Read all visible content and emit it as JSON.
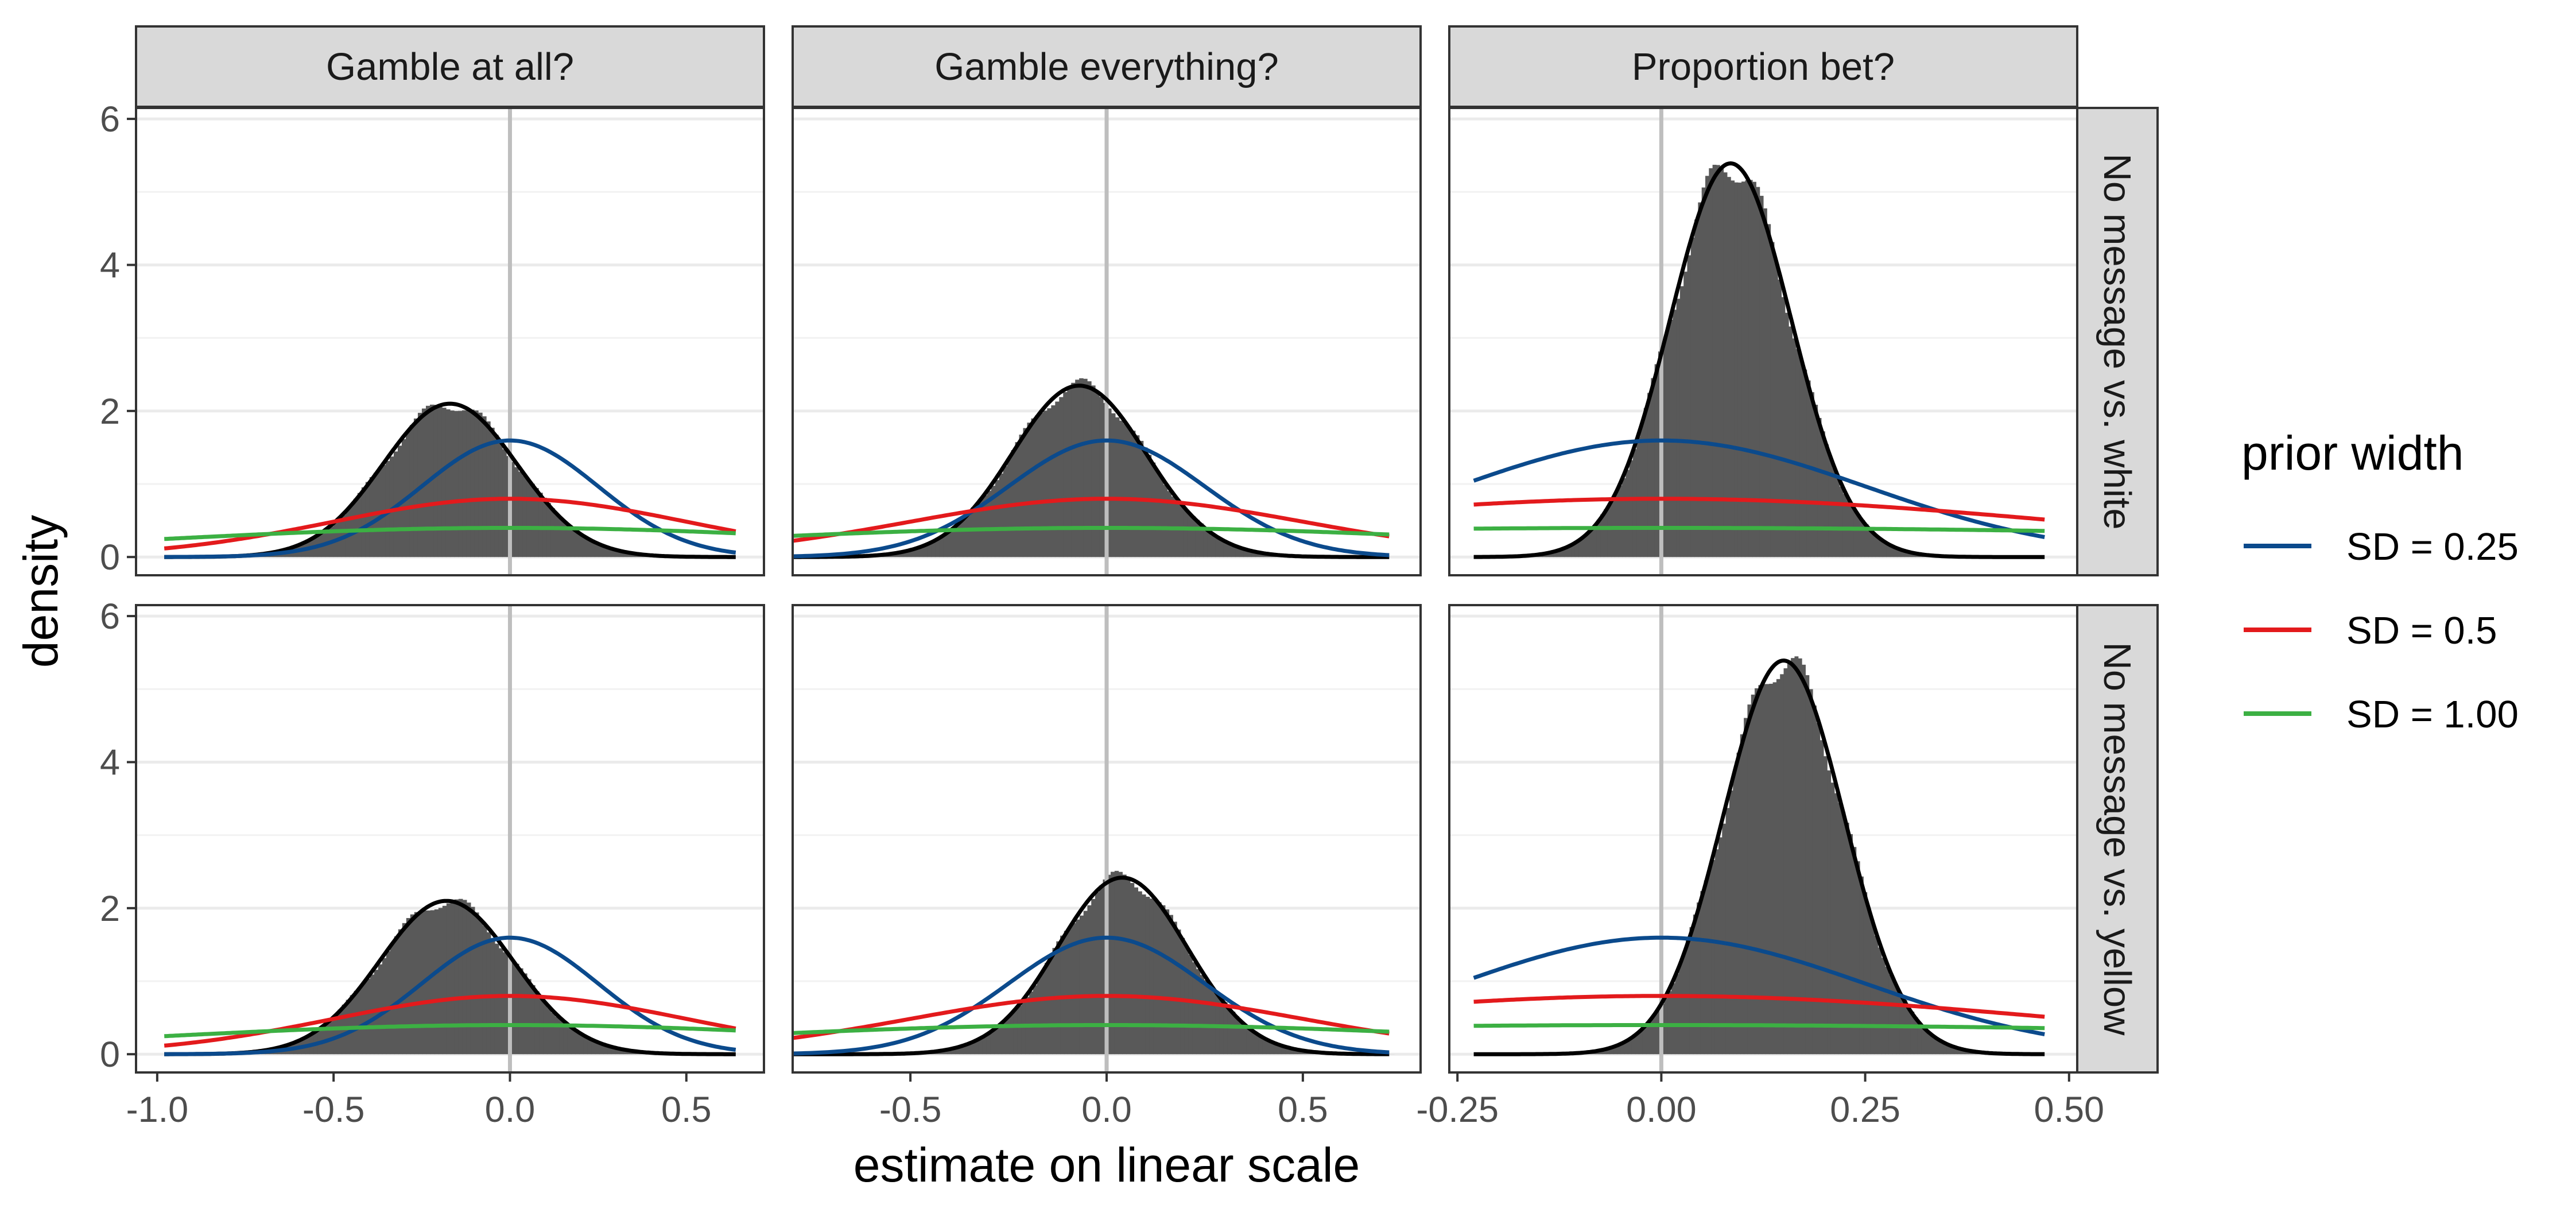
{
  "chart_data": {
    "type": "histogram-density-facets",
    "xlabel": "estimate on linear scale",
    "ylabel": "density",
    "ylim": [
      -0.25,
      6.15
    ],
    "yticks": [
      0,
      2,
      4,
      6
    ],
    "grid": true,
    "theme": "bw",
    "vline_x": 0,
    "column_strips": [
      "Gamble at all?",
      "Gamble everything?",
      "Proportion bet?"
    ],
    "row_strips": [
      "No message vs. white",
      "No message vs. yellow"
    ],
    "columns": [
      {
        "xlim": [
          -1.06,
          0.72
        ],
        "xticks": [
          -1.0,
          -0.5,
          0.0,
          0.5
        ],
        "xtick_labels": [
          "-1.0",
          "-0.5",
          "0.0",
          "0.5"
        ],
        "prior_range": [
          -0.98,
          0.64
        ]
      },
      {
        "xlim": [
          -0.8,
          0.8
        ],
        "xticks": [
          -0.5,
          0.0,
          0.5
        ],
        "xtick_labels": [
          "-0.5",
          "0.0",
          "0.5"
        ],
        "prior_range": [
          -0.8,
          0.72
        ]
      },
      {
        "xlim": [
          -0.26,
          0.51
        ],
        "xticks": [
          -0.25,
          0.0,
          0.25,
          0.5
        ],
        "xtick_labels": [
          "-0.25",
          "0.00",
          "0.25",
          "0.50"
        ],
        "prior_range": [
          -0.23,
          0.47
        ]
      }
    ],
    "posteriors": [
      {
        "row": 0,
        "col": 0,
        "mean": -0.17,
        "sd": 0.19
      },
      {
        "row": 0,
        "col": 1,
        "mean": -0.07,
        "sd": 0.17
      },
      {
        "row": 0,
        "col": 2,
        "mean": 0.085,
        "sd": 0.074
      },
      {
        "row": 1,
        "col": 0,
        "mean": -0.18,
        "sd": 0.19
      },
      {
        "row": 1,
        "col": 1,
        "mean": 0.04,
        "sd": 0.165
      },
      {
        "row": 1,
        "col": 2,
        "mean": 0.15,
        "sd": 0.074
      }
    ],
    "series": [
      {
        "name": "SD = 0.25",
        "prior_sd": 0.25,
        "color": "#0b4a8c"
      },
      {
        "name": "SD = 0.5",
        "prior_sd": 0.5,
        "color": "#e31a1c"
      },
      {
        "name": "SD = 1.00",
        "prior_sd": 1.0,
        "color": "#3cb043"
      }
    ],
    "legend": {
      "title": "prior width",
      "position": "right"
    },
    "colors": {
      "bars": "#595959",
      "posterior_line": "#000000",
      "zero_line": "#bebebe",
      "strip_fill": "#d9d9d9"
    }
  }
}
